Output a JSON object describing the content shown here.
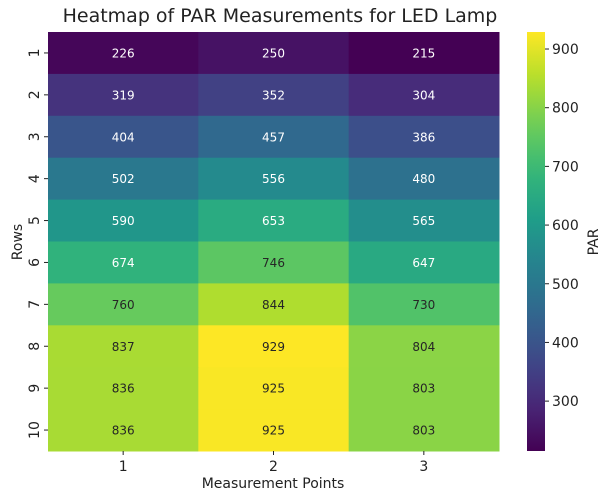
{
  "chart_data": {
    "type": "heatmap",
    "title": "Heatmap of PAR Measurements for LED Lamp",
    "xlabel": "Measurement Points",
    "ylabel": "Rows",
    "x_categories": [
      "1",
      "2",
      "3"
    ],
    "y_categories": [
      "1",
      "2",
      "3",
      "4",
      "5",
      "6",
      "7",
      "8",
      "9",
      "10"
    ],
    "values": [
      [
        226,
        250,
        215
      ],
      [
        319,
        352,
        304
      ],
      [
        404,
        457,
        386
      ],
      [
        502,
        556,
        480
      ],
      [
        590,
        653,
        565
      ],
      [
        674,
        746,
        647
      ],
      [
        760,
        844,
        730
      ],
      [
        837,
        929,
        804
      ],
      [
        836,
        925,
        803
      ],
      [
        836,
        925,
        803
      ]
    ],
    "colormap": "viridis",
    "colorbar": {
      "label": "PAR",
      "range": [
        215,
        929
      ],
      "ticks": [
        300,
        400,
        500,
        600,
        700,
        800,
        900
      ],
      "tick_labels": [
        "300",
        "400",
        "500",
        "600",
        "700",
        "800",
        "900"
      ]
    },
    "annotations": true,
    "grid": false,
    "legend": "colorbar-right"
  }
}
